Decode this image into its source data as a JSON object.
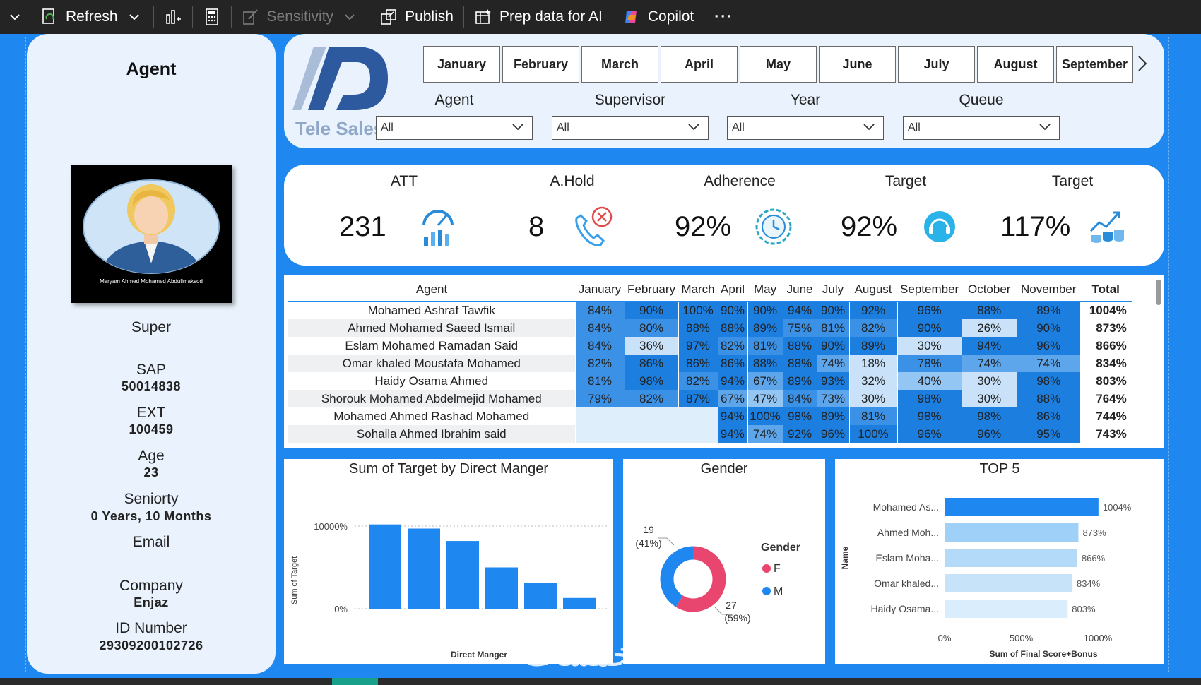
{
  "toolbar": {
    "refresh_label": "Refresh",
    "sensitivity_label": "Sensitivity",
    "publish_label": "Publish",
    "prep_label": "Prep data for AI",
    "copilot_label": "Copilot",
    "more_label": "···"
  },
  "profile": {
    "title": "Agent",
    "photo_caption": "Maryam Ahmed Mohamed Abdulimaksod",
    "role": "Super",
    "sap_label": "SAP",
    "sap_value": "50014838",
    "ext_label": "EXT",
    "ext_value": "100459",
    "age_label": "Age",
    "age_value": "23",
    "seniority_label": "Seniorty",
    "seniority_value": "0 Years, 10 Months",
    "email_label": "Email",
    "company_label": "Company",
    "company_value": "Enjaz",
    "id_label": "ID Number",
    "id_value": "29309200102726"
  },
  "header": {
    "logo_text": "Tele Sales",
    "months": [
      "January",
      "February",
      "March",
      "April",
      "May",
      "June",
      "July",
      "August",
      "September"
    ],
    "filters": [
      {
        "label": "Agent",
        "value": "All"
      },
      {
        "label": "Supervisor",
        "value": "All"
      },
      {
        "label": "Year",
        "value": "All"
      },
      {
        "label": "Queue",
        "value": "All"
      }
    ]
  },
  "kpis": [
    {
      "label": "ATT",
      "value": "231",
      "icon": "speedometer-chart-icon"
    },
    {
      "label": "A.Hold",
      "value": "8",
      "icon": "phone-hold-icon"
    },
    {
      "label": "Adherence",
      "value": "92%",
      "icon": "time-gear-icon"
    },
    {
      "label": "Target",
      "value": "92%",
      "icon": "headset-icon"
    },
    {
      "label": "Target",
      "value": "117%",
      "icon": "growth-coins-icon"
    }
  ],
  "matrix": {
    "agent_header": "Agent",
    "months": [
      "January",
      "February",
      "March",
      "April",
      "May",
      "June",
      "July",
      "August",
      "September",
      "October",
      "November"
    ],
    "total_header": "Total",
    "rows": [
      {
        "agent": "Mohamed Ashraf Tawfik",
        "values": [
          "84%",
          "90%",
          "100%",
          "90%",
          "90%",
          "94%",
          "90%",
          "92%",
          "96%",
          "88%",
          "89%"
        ],
        "total": "1004%"
      },
      {
        "agent": "Ahmed Mohamed Saeed Ismail",
        "values": [
          "84%",
          "80%",
          "88%",
          "88%",
          "89%",
          "75%",
          "81%",
          "82%",
          "90%",
          "26%",
          "90%"
        ],
        "total": "873%"
      },
      {
        "agent": "Eslam Mohamed Ramadan Said",
        "values": [
          "84%",
          "36%",
          "97%",
          "82%",
          "81%",
          "88%",
          "90%",
          "89%",
          "30%",
          "94%",
          "96%"
        ],
        "total": "866%"
      },
      {
        "agent": "Omar khaled Moustafa Mohamed",
        "values": [
          "82%",
          "86%",
          "86%",
          "86%",
          "88%",
          "88%",
          "74%",
          "18%",
          "78%",
          "74%",
          "74%"
        ],
        "total": "834%"
      },
      {
        "agent": "Haidy Osama Ahmed",
        "values": [
          "81%",
          "98%",
          "82%",
          "94%",
          "67%",
          "89%",
          "93%",
          "32%",
          "40%",
          "30%",
          "98%"
        ],
        "total": "803%"
      },
      {
        "agent": "Shorouk Mohamed Abdelmejid Mohamed",
        "values": [
          "79%",
          "82%",
          "87%",
          "67%",
          "47%",
          "84%",
          "73%",
          "30%",
          "98%",
          "30%",
          "88%"
        ],
        "total": "764%"
      },
      {
        "agent": "Mohamed Ahmed Rashad Mohamed",
        "values": [
          "",
          "",
          "",
          "94%",
          "100%",
          "98%",
          "89%",
          "81%",
          "98%",
          "98%",
          "86%"
        ],
        "total": "744%"
      },
      {
        "agent": "Sohaila Ahmed Ibrahim said",
        "values": [
          "",
          "",
          "",
          "94%",
          "74%",
          "92%",
          "96%",
          "100%",
          "96%",
          "96%",
          "95%"
        ],
        "total": "743%"
      }
    ]
  },
  "chart_data": [
    {
      "type": "bar",
      "title": "Sum of Target by Direct Manger",
      "xlabel": "Direct Manger",
      "ylabel": "Sum of Target",
      "y_ticks": [
        "10000%",
        "0%"
      ],
      "ylim": [
        0,
        10000
      ],
      "categories": [
        "",
        "",
        "",
        "",
        "",
        ""
      ],
      "values": [
        10200,
        9700,
        8200,
        5000,
        3100,
        1300
      ],
      "color": "#1e88f0"
    },
    {
      "type": "pie",
      "title": "Gender",
      "legend_title": "Gender",
      "slices": [
        {
          "name": "F",
          "value": 27,
          "pct": "(59%)",
          "color": "#e8466e"
        },
        {
          "name": "M",
          "value": 19,
          "pct": "(41%)",
          "color": "#1e88f0"
        }
      ]
    },
    {
      "type": "bar",
      "orientation": "horizontal",
      "title": "TOP 5",
      "ylabel": "Name",
      "xlabel": "Sum of Final Score+Bonus",
      "x_ticks": [
        "0%",
        "500%",
        "1000%"
      ],
      "xlim": [
        0,
        1000
      ],
      "categories": [
        "Mohamed As...",
        "Ahmed Moh...",
        "Eslam Moha...",
        "Omar khaled...",
        "Haidy Osama..."
      ],
      "values": [
        1004,
        873,
        866,
        834,
        803
      ],
      "labels": [
        "1004%",
        "873%",
        "866%",
        "834%",
        "803%"
      ],
      "colors": [
        "#1e88f0",
        "#9fd0f8",
        "#b3daf9",
        "#c6e3fa",
        "#d9edfc"
      ]
    }
  ],
  "watermark": "خمسات"
}
